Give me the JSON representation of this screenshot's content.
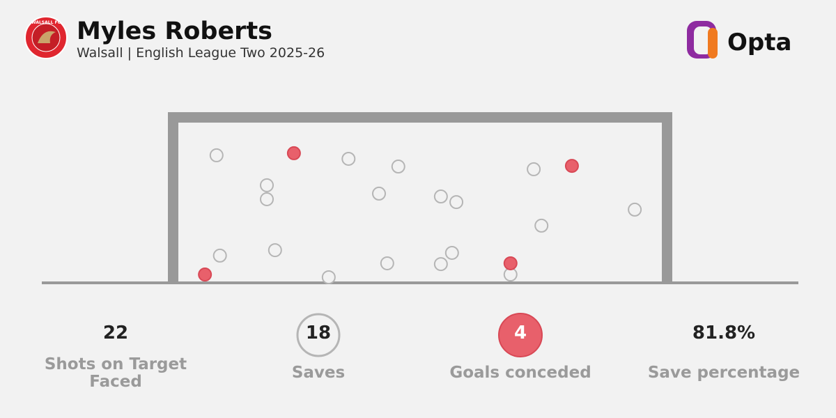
{
  "header": {
    "title": "Myles Roberts",
    "subtitle": "Walsall | English League Two 2025-26",
    "badge_text": "WALSALL FC",
    "brand": "Opta"
  },
  "chart_data": {
    "type": "scatter",
    "xlim": [
      0,
      100
    ],
    "ylim": [
      0,
      100
    ],
    "series": [
      {
        "color": "#b5b5b5",
        "x": [
          7.9,
          35.2,
          45.5,
          73.5,
          18.3,
          18.3,
          41.5,
          54.3,
          57.5,
          94.4,
          75.1,
          8.6,
          20.0,
          56.6,
          43.2,
          54.3,
          31.1,
          68.7
        ],
        "y": [
          79.6,
          77.4,
          72.6,
          70.9,
          60.9,
          52.2,
          55.7,
          53.9,
          50.4,
          45.7,
          35.7,
          17.0,
          20.4,
          18.7,
          12.2,
          11.7,
          3.5,
          5.2
        ]
      },
      {
        "color": "#e8606b",
        "x": [
          23.9,
          81.4,
          5.5,
          68.7
        ],
        "y": [
          80.9,
          73.0,
          5.2,
          12.2
        ]
      }
    ]
  },
  "stats": [
    {
      "value": 22,
      "label": "Shots on Target Faced"
    },
    {
      "value": 18,
      "label": "Saves"
    },
    {
      "value": 4,
      "label": "Goals conceded"
    },
    {
      "value": 81.8,
      "value_label": "81.8%",
      "label": "Save percentage"
    }
  ]
}
